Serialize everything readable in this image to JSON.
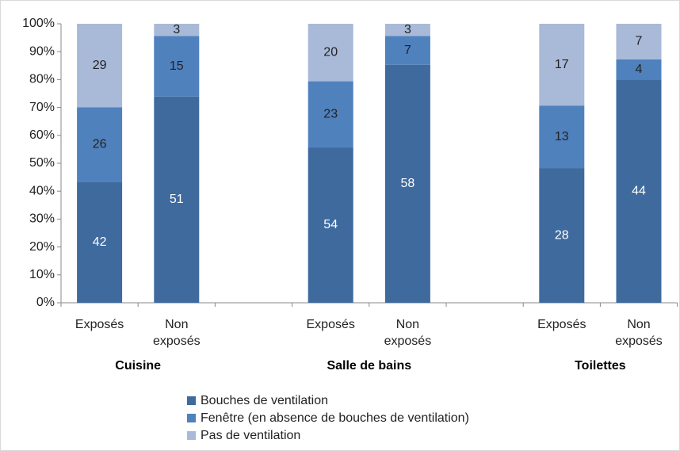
{
  "chart_data": {
    "type": "bar",
    "stacked": "percent",
    "categories": [
      "Exposés",
      "Non exposés",
      "Exposés",
      "Non exposés",
      "Exposés",
      "Non exposés"
    ],
    "groups": [
      "Cuisine",
      "Salle de bains",
      "Toilettes"
    ],
    "series": [
      {
        "name": "Bouches de ventilation",
        "color": "#3f6a9e",
        "values": [
          42,
          51,
          54,
          58,
          28,
          44
        ]
      },
      {
        "name": "Fenêtre (en absence de bouches de ventilation)",
        "color": "#4f81bd",
        "values": [
          26,
          15,
          23,
          7,
          13,
          4
        ]
      },
      {
        "name": "Pas de ventilation",
        "color": "#a9b9d8",
        "values": [
          29,
          3,
          20,
          3,
          17,
          7
        ]
      }
    ],
    "ylim": [
      0,
      100
    ],
    "yticks": [
      {
        "value": 0,
        "label": "0%"
      },
      {
        "value": 10,
        "label": "10%"
      },
      {
        "value": 20,
        "label": "20%"
      },
      {
        "value": 30,
        "label": "30%"
      },
      {
        "value": 40,
        "label": "40%"
      },
      {
        "value": 50,
        "label": "50%"
      },
      {
        "value": 60,
        "label": "60%"
      },
      {
        "value": 70,
        "label": "70%"
      },
      {
        "value": 80,
        "label": "80%"
      },
      {
        "value": 90,
        "label": "90%"
      },
      {
        "value": 100,
        "label": "100%"
      }
    ],
    "grid": false,
    "legend": "bottom"
  }
}
